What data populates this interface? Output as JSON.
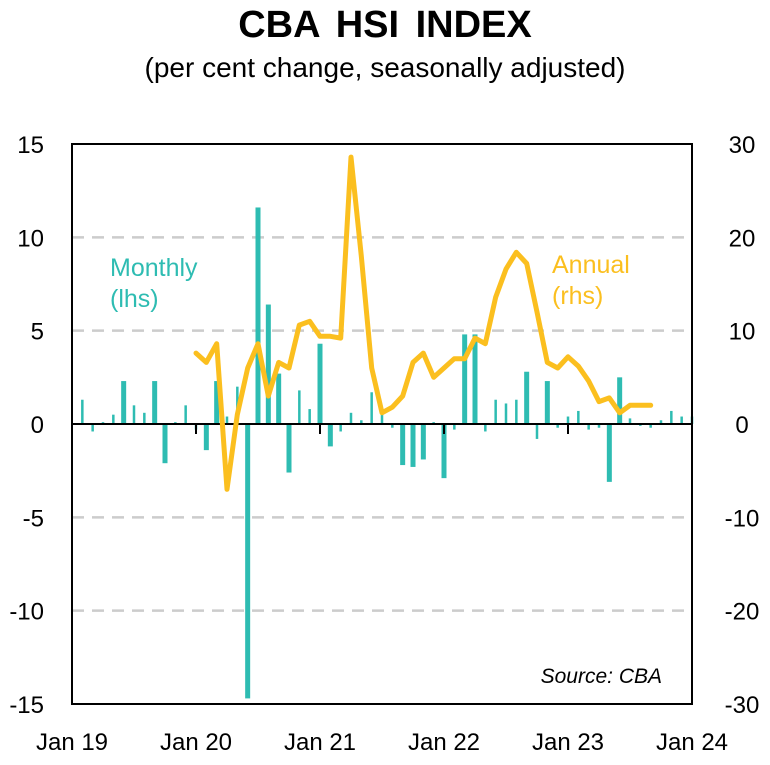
{
  "chart_data": {
    "type": "bar+line",
    "title": "CBA  HSI INDEX",
    "subtitle": "(per cent change, seasonally adjusted)",
    "source": "Source:  CBA",
    "colors": {
      "monthly": "#2ebcb2",
      "annual": "#fbbf1f",
      "grid": "#cccccc",
      "axis": "#000000"
    },
    "x_ticks": [
      "Jan 19",
      "Jan 20",
      "Jan 21",
      "Jan 22",
      "Jan 23",
      "Jan 24"
    ],
    "y_left": {
      "range": [
        -15,
        15
      ],
      "ticks": [
        "15",
        "10",
        "5",
        "0",
        "-5",
        "-10",
        "-15"
      ]
    },
    "y_right": {
      "range": [
        -30,
        30
      ],
      "ticks": [
        "30",
        "20",
        "10",
        "0",
        "-10",
        "-20",
        "-30"
      ]
    },
    "series": [
      {
        "name": "Monthly",
        "legend": [
          "Monthly",
          "(lhs)"
        ],
        "axis": "left",
        "kind": "bar",
        "start_month_index": 1,
        "values": [
          1.3,
          -0.4,
          0.1,
          0.5,
          2.3,
          1.0,
          0.6,
          2.3,
          -2.1,
          0.1,
          1.0,
          -0.3,
          -1.4,
          2.3,
          0.4,
          2.0,
          -14.7,
          11.6,
          6.4,
          2.7,
          -2.6,
          1.8,
          0.8,
          4.3,
          -1.2,
          -0.4,
          0.6,
          0.2,
          1.7,
          0.8,
          -0.2,
          -2.2,
          -2.3,
          -1.9,
          0.1,
          -2.9,
          -0.3,
          4.8,
          4.8,
          -0.4,
          1.3,
          1.1,
          1.3,
          2.8,
          -0.8,
          2.3,
          -0.2,
          0.4,
          0.7,
          -0.3,
          -0.2,
          -3.1,
          2.5,
          0.3,
          -0.1,
          -0.2,
          0.2,
          0.7,
          0.4,
          0.4
        ]
      },
      {
        "name": "Annual",
        "legend": [
          "Annual",
          "(rhs)"
        ],
        "axis": "right",
        "kind": "line",
        "start_month_index": 12,
        "values": [
          7.6,
          6.6,
          8.6,
          -7.0,
          1.0,
          6.0,
          8.6,
          3.0,
          6.6,
          6.0,
          10.6,
          11.0,
          9.4,
          9.4,
          9.2,
          28.6,
          18.0,
          6.0,
          1.2,
          1.8,
          3.0,
          6.6,
          7.6,
          5.0,
          6.0,
          7.0,
          7.0,
          9.2,
          8.6,
          13.6,
          16.6,
          18.4,
          17.2,
          12.0,
          6.6,
          6.0,
          7.2,
          6.2,
          4.6,
          2.4,
          2.8,
          1.2,
          2.0,
          2.0,
          2.0
        ]
      }
    ]
  }
}
